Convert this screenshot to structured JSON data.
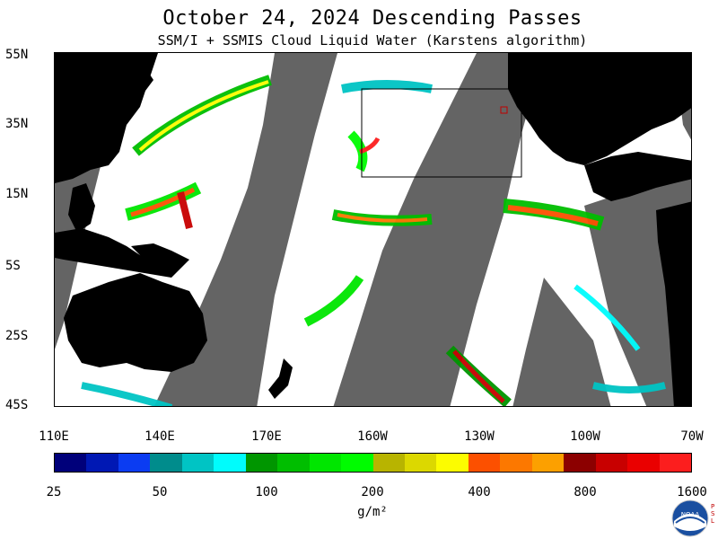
{
  "title": "October 24, 2024  Descending Passes",
  "subtitle": "SSM/I + SSMIS Cloud Liquid Water (Karstens algorithm)",
  "lat_labels": [
    "55N",
    "35N",
    "15N",
    "5S",
    "25S",
    "45S"
  ],
  "lon_labels": [
    "110E",
    "140E",
    "170E",
    "160W",
    "130W",
    "100W",
    "70W"
  ],
  "colorbar": {
    "colors": [
      "#00007a",
      "#0018b4",
      "#0b3cf2",
      "#008c8c",
      "#00c4c4",
      "#00fcfc",
      "#009600",
      "#00be00",
      "#00e600",
      "#00fc00",
      "#b8b400",
      "#dcd800",
      "#fcfc00",
      "#fc5000",
      "#fc7800",
      "#fca000",
      "#8c0000",
      "#c80000",
      "#ea0000",
      "#fc1e1e"
    ],
    "labels": [
      "25",
      "50",
      "100",
      "200",
      "400",
      "800",
      "1600"
    ]
  },
  "units": "g/m²",
  "logo": {
    "text": "NOAA",
    "side_text": "PSL"
  },
  "colors": {
    "land": "#000000",
    "no_data": "#646464",
    "ocean_clear": "#ffffff"
  }
}
